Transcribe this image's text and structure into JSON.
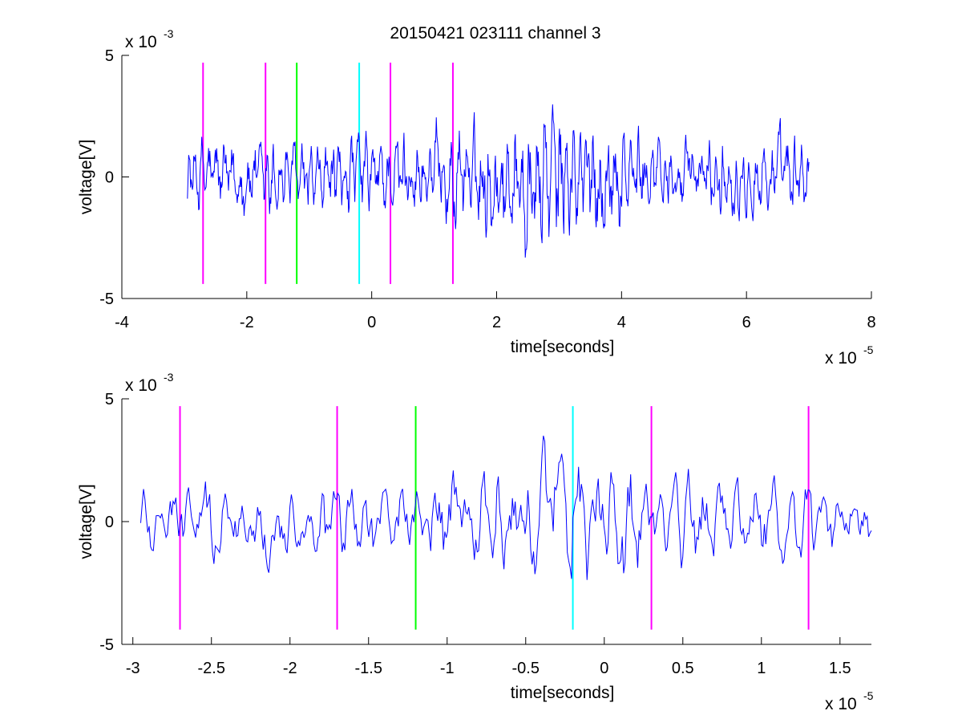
{
  "title": "20150421 023111 channel 3",
  "chart_data": [
    {
      "type": "line",
      "xlabel": "time[seconds]",
      "ylabel": "voltage[V]",
      "x_multiplier_label": {
        "base": "x 10",
        "exp": "-5"
      },
      "y_multiplier_label": {
        "base": "x 10",
        "exp": "-3"
      },
      "xlim": [
        -4,
        8
      ],
      "ylim": [
        -5,
        5
      ],
      "xticks": [
        -4,
        -2,
        0,
        2,
        4,
        6,
        8
      ],
      "xtick_labels": [
        "-4",
        "-2",
        "0",
        "2",
        "4",
        "6",
        "8"
      ],
      "yticks": [
        -5,
        0,
        5
      ],
      "ytick_labels": [
        "-5",
        "0",
        "5"
      ],
      "signal": {
        "color": "#0000ff",
        "x_start": -2.95,
        "x_end": 7.0,
        "samples": 1000
      },
      "markers": [
        {
          "x": -2.7,
          "color": "#ff00ff"
        },
        {
          "x": -1.7,
          "color": "#ff00ff"
        },
        {
          "x": -1.2,
          "color": "#00ff00"
        },
        {
          "x": -0.2,
          "color": "#00ffff"
        },
        {
          "x": 0.3,
          "color": "#ff00ff"
        },
        {
          "x": 1.3,
          "color": "#ff00ff"
        }
      ],
      "marker_range": [
        -4.4,
        4.7
      ]
    },
    {
      "type": "line",
      "xlabel": "time[seconds]",
      "ylabel": "voltage[V]",
      "x_multiplier_label": {
        "base": "x 10",
        "exp": "-5"
      },
      "y_multiplier_label": {
        "base": "x 10",
        "exp": "-3"
      },
      "xlim": [
        -3.07,
        1.7
      ],
      "ylim": [
        -5,
        5
      ],
      "xticks": [
        -3,
        -2.5,
        -2,
        -1.5,
        -1,
        -0.5,
        0,
        0.5,
        1,
        1.5
      ],
      "xtick_labels": [
        "-3",
        "-2.5",
        "-2",
        "-1.5",
        "-1",
        "-0.5",
        "0",
        "0.5",
        "1",
        "1.5"
      ],
      "yticks": [
        -5,
        0,
        5
      ],
      "ytick_labels": [
        "-5",
        "0",
        "5"
      ],
      "signal": {
        "color": "#0000ff",
        "x_start": -2.95,
        "x_end": 1.7,
        "samples": 520
      },
      "markers": [
        {
          "x": -2.7,
          "color": "#ff00ff"
        },
        {
          "x": -1.7,
          "color": "#ff00ff"
        },
        {
          "x": -1.2,
          "color": "#00ff00"
        },
        {
          "x": -0.2,
          "color": "#00ffff"
        },
        {
          "x": 0.3,
          "color": "#ff00ff"
        },
        {
          "x": 1.3,
          "color": "#ff00ff"
        }
      ],
      "marker_range": [
        -4.4,
        4.7
      ]
    }
  ]
}
